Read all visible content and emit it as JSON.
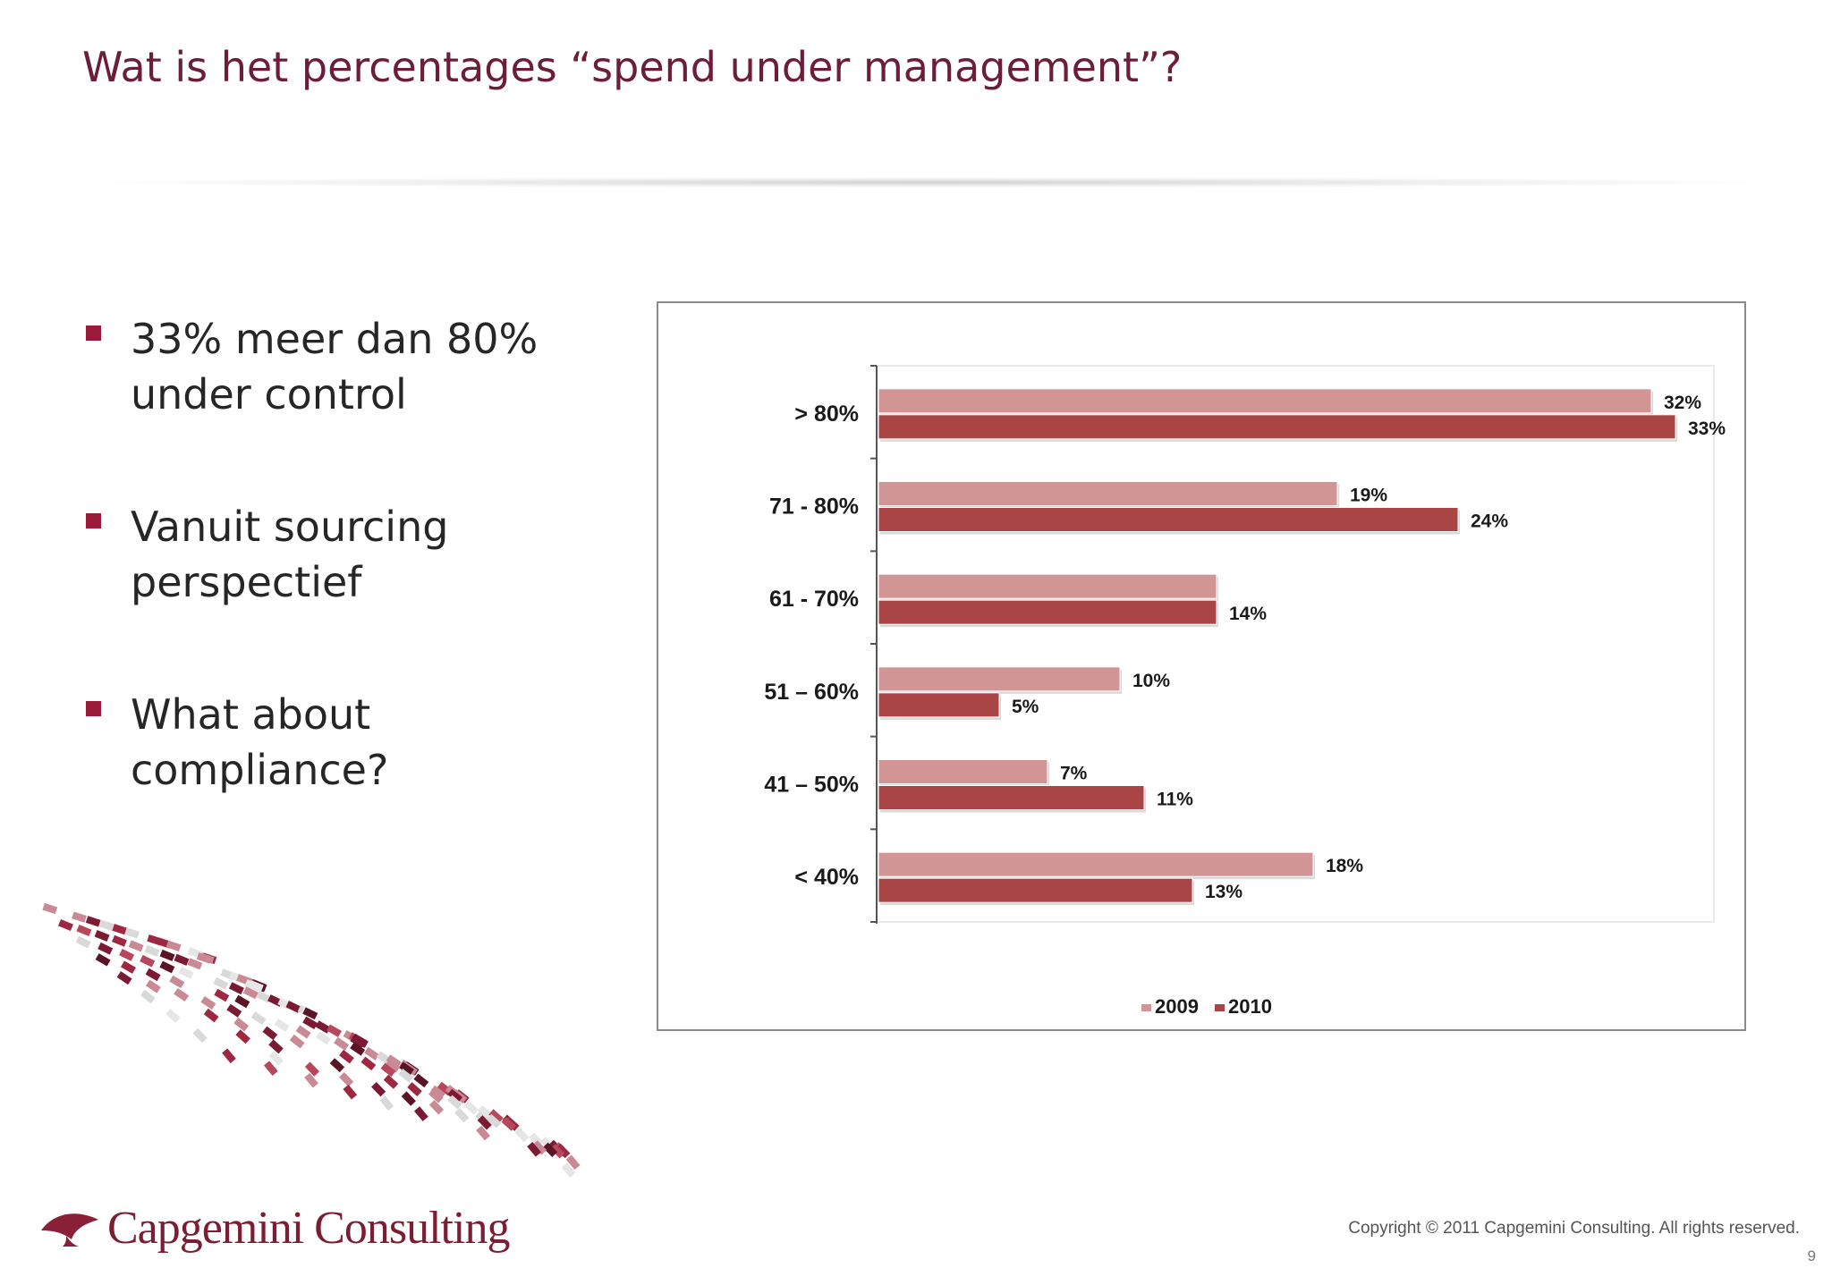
{
  "slide": {
    "title": "Wat is het percentages “spend under management”?",
    "bullets": [
      "33% meer dan 80% under control",
      "Vanuit sourcing perspectief",
      "What about compliance?"
    ]
  },
  "chart_data": {
    "type": "bar",
    "orientation": "horizontal",
    "categories": [
      "> 80%",
      "71 - 80%",
      "61 - 70%",
      "51 – 60%",
      "41 – 50%",
      "< 40%"
    ],
    "series": [
      {
        "name": "2009",
        "values": [
          32,
          19,
          14,
          10,
          7,
          18
        ],
        "labels": [
          "32%",
          "19%",
          "",
          "10%",
          "7%",
          "18%"
        ],
        "color": "#d29595"
      },
      {
        "name": "2010",
        "values": [
          33,
          24,
          14,
          5,
          11,
          13
        ],
        "labels": [
          "33%",
          "24%",
          "14%",
          "5%",
          "11%",
          "13%"
        ],
        "color": "#a94545"
      }
    ],
    "xlim": [
      0,
      35
    ],
    "legend": "bottom-center",
    "grid": false
  },
  "footer": {
    "logo_text": "Capgemini Consulting",
    "copyright": "Copyright © 2011 Capgemini Consulting. All rights reserved.",
    "page_number": "9"
  },
  "colors": {
    "title": "#6b1d3a",
    "bullet_marker": "#9b1b3a",
    "bar_2009": "#d29595",
    "bar_2010": "#a94545"
  }
}
